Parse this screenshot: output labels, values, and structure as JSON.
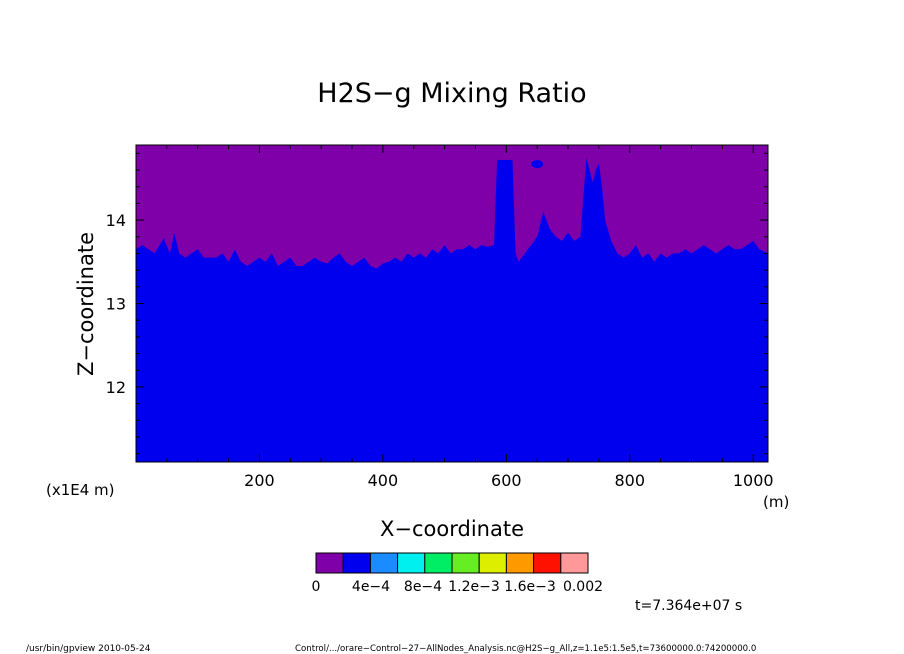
{
  "chart_data": {
    "type": "heatmap",
    "title": "H2S−g Mixing Ratio",
    "xlabel": "X−coordinate",
    "ylabel": "Z−coordinate",
    "x_unit": "(m)",
    "y_unit": "(x1E4 m)",
    "xlim": [
      0,
      1024
    ],
    "ylim": [
      11.1,
      14.9
    ],
    "xticks": [
      200,
      400,
      600,
      800,
      1000
    ],
    "yticks": [
      12,
      13,
      14
    ],
    "colors": {
      "upper_region": "#7f00a8",
      "lower_region": "#0000ee"
    },
    "boundary": {
      "description_free": true,
      "x": [
        0,
        10,
        20,
        30,
        45,
        55,
        62,
        70,
        80,
        90,
        100,
        110,
        120,
        130,
        140,
        150,
        160,
        170,
        180,
        190,
        200,
        210,
        220,
        230,
        240,
        250,
        260,
        270,
        280,
        290,
        300,
        310,
        320,
        330,
        340,
        350,
        360,
        370,
        380,
        390,
        400,
        410,
        420,
        430,
        440,
        450,
        460,
        470,
        480,
        490,
        500,
        510,
        520,
        530,
        540,
        550,
        560,
        570,
        580,
        585,
        590,
        610,
        615,
        620,
        630,
        640,
        650,
        660,
        670,
        680,
        690,
        700,
        710,
        720,
        725,
        730,
        735,
        740,
        745,
        750,
        755,
        760,
        770,
        780,
        790,
        800,
        810,
        820,
        830,
        840,
        850,
        860,
        870,
        880,
        890,
        900,
        910,
        920,
        930,
        940,
        950,
        960,
        970,
        980,
        990,
        1000,
        1010,
        1024
      ],
      "z": [
        13.65,
        13.7,
        13.65,
        13.6,
        13.78,
        13.6,
        13.85,
        13.6,
        13.55,
        13.6,
        13.65,
        13.55,
        13.55,
        13.55,
        13.6,
        13.5,
        13.65,
        13.5,
        13.45,
        13.5,
        13.55,
        13.5,
        13.6,
        13.45,
        13.5,
        13.55,
        13.45,
        13.45,
        13.5,
        13.55,
        13.5,
        13.48,
        13.55,
        13.6,
        13.5,
        13.45,
        13.5,
        13.55,
        13.45,
        13.42,
        13.48,
        13.5,
        13.55,
        13.5,
        13.6,
        13.55,
        13.6,
        13.55,
        13.65,
        13.6,
        13.7,
        13.6,
        13.65,
        13.65,
        13.7,
        13.65,
        13.7,
        13.68,
        13.7,
        14.72,
        14.72,
        14.72,
        13.6,
        13.5,
        13.6,
        13.7,
        13.8,
        14.1,
        13.9,
        13.8,
        13.75,
        13.85,
        13.75,
        13.8,
        14.3,
        14.75,
        14.6,
        14.45,
        14.6,
        14.68,
        14.4,
        14.0,
        13.75,
        13.6,
        13.55,
        13.6,
        13.7,
        13.55,
        13.6,
        13.5,
        13.6,
        13.55,
        13.6,
        13.6,
        13.65,
        13.6,
        13.65,
        13.7,
        13.65,
        13.6,
        13.65,
        13.7,
        13.65,
        13.65,
        13.7,
        13.75,
        13.65,
        13.6
      ]
    },
    "blobs": [
      {
        "x": 650,
        "z": 14.67
      }
    ],
    "legend": {
      "colors": [
        "#7f00a8",
        "#0000ee",
        "#1a8cff",
        "#00f0f0",
        "#00ee66",
        "#66ee22",
        "#ddee00",
        "#ff9900",
        "#ff1100",
        "#ff9999"
      ],
      "labels": [
        "0",
        "4e−4",
        "8e−4",
        "1.2e−3",
        "1.6e−3",
        "0.002"
      ]
    },
    "time_label": "t=7.364e+07 s"
  },
  "footer": {
    "left": "/usr/bin/gpview   2010-05-24",
    "right": "Control/.../orare−Control−27−AllNodes_Analysis.nc@H2S−g_All,z=1.1e5:1.5e5,t=73600000.0:74200000.0"
  }
}
